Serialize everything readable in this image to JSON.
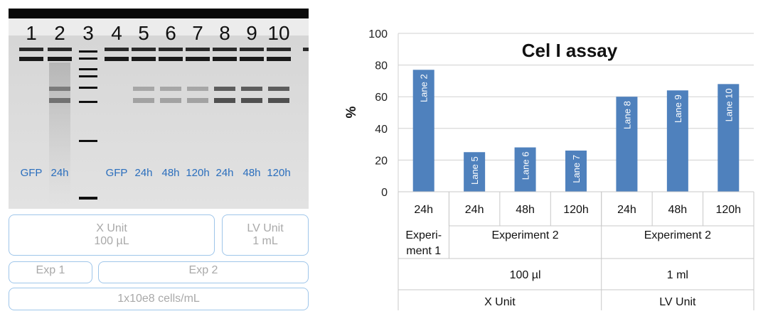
{
  "gel": {
    "lane_numbers": [
      "1",
      "2",
      "3",
      "4",
      "5",
      "6",
      "7",
      "8",
      "9",
      "10"
    ],
    "lane_labels": [
      "GFP",
      "24h",
      "",
      "GFP",
      "24h",
      "48h",
      "120h",
      "24h",
      "48h",
      "120h"
    ],
    "boxes": {
      "x_unit_line1": "X Unit",
      "x_unit_line2": "100 µL",
      "lv_unit_line1": "LV Unit",
      "lv_unit_line2": "1 mL",
      "exp1": "Exp 1",
      "exp2": "Exp 2",
      "cells": "1x10e8 cells/mL"
    }
  },
  "chart_data": {
    "type": "bar",
    "title": "Cel I assay",
    "ylabel": "%",
    "xlabel": "",
    "ylim": [
      0,
      100
    ],
    "yticks": [
      0,
      20,
      40,
      60,
      80,
      100
    ],
    "grid": true,
    "categories": [
      "24h",
      "24h",
      "48h",
      "120h",
      "24h",
      "48h",
      "120h"
    ],
    "values": [
      77,
      25,
      28,
      26,
      60,
      64,
      68
    ],
    "bar_labels": [
      "Lane 2",
      "Lane 5",
      "Lane 6",
      "Lane 7",
      "Lane 8",
      "Lane 9",
      "Lane 10"
    ],
    "bar_color": "#4f81bd",
    "group_levels": [
      [
        {
          "label": "Experi-",
          "label2": "ment 1",
          "span": 1
        },
        {
          "label": "Experiment 2",
          "label2": "",
          "span": 3
        },
        {
          "label": "Experiment 2",
          "label2": "",
          "span": 3
        }
      ],
      [
        {
          "label": "",
          "span": 1
        },
        {
          "label": "100 µl",
          "span": 3
        },
        {
          "label": "1 ml",
          "span": 3
        }
      ],
      [
        {
          "label": "X Unit",
          "span": 4
        },
        {
          "label": "LV Unit",
          "span": 3
        }
      ]
    ]
  }
}
